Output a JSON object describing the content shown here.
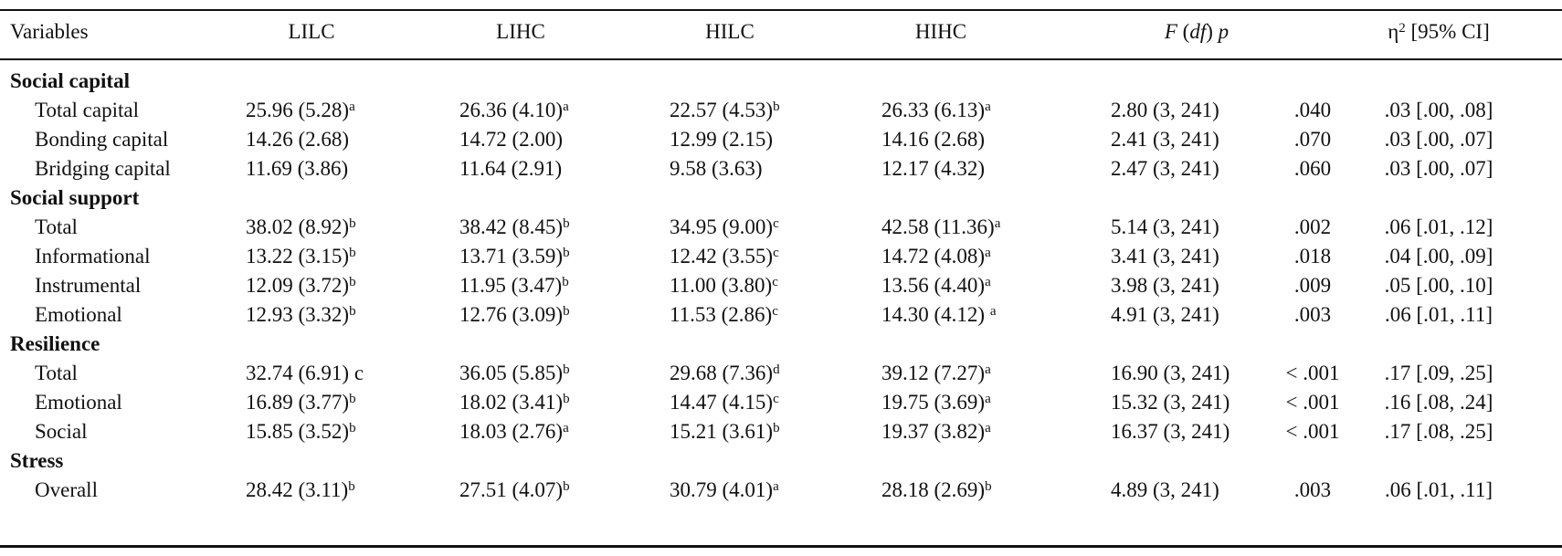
{
  "header": {
    "variables": "Variables",
    "groups": [
      "LILC",
      "LIHC",
      "HILC",
      "HIHC"
    ],
    "f_test": {
      "f": "F",
      "open": " (",
      "df": "df",
      "close": ") ",
      "p": "p"
    },
    "effect": {
      "eta": "η",
      "sup": "2",
      "rest": " [95% CI]"
    }
  },
  "sections": [
    {
      "title": "Social capital",
      "rows": [
        {
          "label": "Total capital",
          "cells": [
            {
              "text": "25.96 (5.28)",
              "sup": "a"
            },
            {
              "text": "26.36 (4.10)",
              "sup": "a"
            },
            {
              "text": "22.57 (4.53)",
              "sup": "b"
            },
            {
              "text": "26.33 (6.13)",
              "sup": "a"
            }
          ],
          "f": "2.80 (3, 241)",
          "p": ".040",
          "eta": ".03 [.00, .08]"
        },
        {
          "label": "Bonding capital",
          "cells": [
            {
              "text": "14.26 (2.68)"
            },
            {
              "text": "14.72 (2.00)"
            },
            {
              "text": "12.99 (2.15)"
            },
            {
              "text": "14.16 (2.68)"
            }
          ],
          "f": "2.41 (3, 241)",
          "p": ".070",
          "eta": ".03 [.00, .07]"
        },
        {
          "label": "Bridging capital",
          "cells": [
            {
              "text": "11.69 (3.86)"
            },
            {
              "text": "11.64 (2.91)"
            },
            {
              "text": "9.58 (3.63)"
            },
            {
              "text": "12.17 (4.32)"
            }
          ],
          "f": "2.47 (3, 241)",
          "p": ".060",
          "eta": ".03 [.00, .07]"
        }
      ]
    },
    {
      "title": "Social support",
      "rows": [
        {
          "label": "Total",
          "cells": [
            {
              "text": "38.02 (8.92)",
              "sup": "b"
            },
            {
              "text": "38.42 (8.45)",
              "sup": "b"
            },
            {
              "text": "34.95 (9.00)",
              "sup": "c"
            },
            {
              "text": "42.58 (11.36)",
              "sup": "a"
            }
          ],
          "f": "5.14 (3, 241)",
          "p": ".002",
          "eta": ".06 [.01, .12]"
        },
        {
          "label": "Informational",
          "cells": [
            {
              "text": "13.22 (3.15)",
              "sup": "b"
            },
            {
              "text": "13.71 (3.59)",
              "sup": "b"
            },
            {
              "text": "12.42 (3.55)",
              "sup": "c"
            },
            {
              "text": "14.72 (4.08)",
              "sup": "a"
            }
          ],
          "f": "3.41 (3, 241)",
          "p": ".018",
          "eta": ".04 [.00, .09]"
        },
        {
          "label": "Instrumental",
          "cells": [
            {
              "text": "12.09 (3.72)",
              "sup": "b"
            },
            {
              "text": "11.95 (3.47)",
              "sup": "b"
            },
            {
              "text": "11.00 (3.80)",
              "sup": "c"
            },
            {
              "text": "13.56 (4.40)",
              "sup": "a"
            }
          ],
          "f": "3.98 (3, 241)",
          "p": ".009",
          "eta": ".05 [.00, .10]"
        },
        {
          "label": "Emotional",
          "cells": [
            {
              "text": "12.93 (3.32)",
              "sup": "b"
            },
            {
              "text": "12.76 (3.09)",
              "sup": "b"
            },
            {
              "text": "11.53 (2.86)",
              "sup": "c"
            },
            {
              "text": "14.30 (4.12) ",
              "sup": "a"
            }
          ],
          "f": "4.91 (3, 241)",
          "p": ".003",
          "eta": ".06 [.01, .11]"
        }
      ]
    },
    {
      "title": "Resilience",
      "rows": [
        {
          "label": "Total",
          "cells": [
            {
              "text": "32.74 (6.91) c"
            },
            {
              "text": "36.05 (5.85)",
              "sup": "b"
            },
            {
              "text": "29.68 (7.36)",
              "sup": "d"
            },
            {
              "text": "39.12 (7.27)",
              "sup": "a"
            }
          ],
          "f": "16.90 (3, 241)",
          "p": "< .001",
          "eta": ".17 [.09, .25]"
        },
        {
          "label": "Emotional",
          "cells": [
            {
              "text": "16.89 (3.77)",
              "sup": "b"
            },
            {
              "text": "18.02 (3.41)",
              "sup": "b"
            },
            {
              "text": "14.47 (4.15)",
              "sup": "c"
            },
            {
              "text": "19.75 (3.69)",
              "sup": "a"
            }
          ],
          "f": "15.32 (3, 241)",
          "p": "< .001",
          "eta": ".16 [.08, .24]"
        },
        {
          "label": "Social",
          "cells": [
            {
              "text": "15.85 (3.52)",
              "sup": "b"
            },
            {
              "text": "18.03 (2.76)",
              "sup": "a"
            },
            {
              "text": "15.21 (3.61)",
              "sup": "b"
            },
            {
              "text": "19.37 (3.82)",
              "sup": "a"
            }
          ],
          "f": "16.37 (3, 241)",
          "p": "< .001",
          "eta": ".17 [.08, .25]"
        }
      ]
    },
    {
      "title": "Stress",
      "rows": [
        {
          "label": "Overall",
          "cells": [
            {
              "text": "28.42 (3.11)",
              "sup": "b"
            },
            {
              "text": "27.51 (4.07)",
              "sup": "b"
            },
            {
              "text": "30.79 (4.01)",
              "sup": "a"
            },
            {
              "text": "28.18 (2.69)",
              "sup": "b"
            }
          ],
          "f": "4.89 (3, 241)",
          "p": ".003",
          "eta": ".06 [.01, .11]"
        }
      ]
    }
  ]
}
